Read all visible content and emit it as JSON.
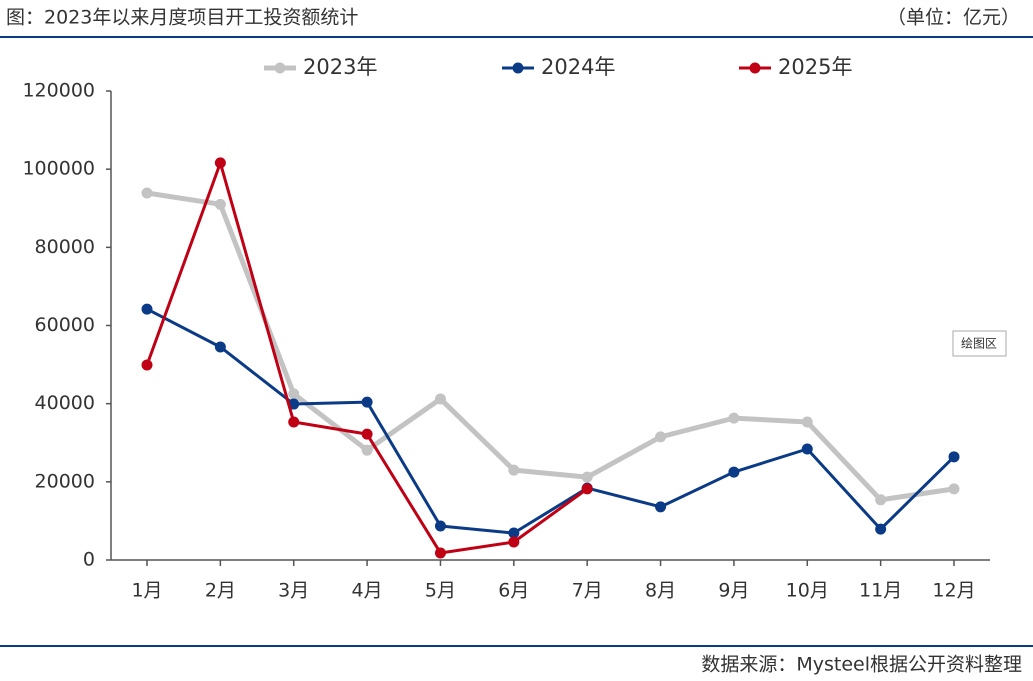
{
  "chart_data": {
    "type": "line",
    "title": "图：2023年以来月度项目开工投资额统计",
    "unit": "（单位：亿元）",
    "source": "数据来源：Mysteel根据公开资料整理",
    "annotation": "绘图区",
    "categories": [
      "1月",
      "2月",
      "3月",
      "4月",
      "5月",
      "6月",
      "7月",
      "8月",
      "9月",
      "10月",
      "11月",
      "12月"
    ],
    "series": [
      {
        "name": "2023年",
        "color": "#c3c3c3",
        "values": [
          93900,
          91000,
          42500,
          28100,
          41200,
          23000,
          21200,
          31500,
          36300,
          35300,
          15400,
          18200
        ]
      },
      {
        "name": "2024年",
        "color": "#0b3a86",
        "values": [
          64200,
          54500,
          39900,
          40400,
          8700,
          6900,
          18400,
          13600,
          22500,
          28400,
          7900,
          26400
        ]
      },
      {
        "name": "2025年",
        "color": "#c00014",
        "values": [
          49900,
          101600,
          35300,
          32200,
          1800,
          4600,
          18200,
          null,
          null,
          null,
          null,
          null
        ]
      }
    ],
    "ylim": [
      0,
      120000
    ],
    "yticks": [
      0,
      20000,
      40000,
      60000,
      80000,
      100000,
      120000
    ],
    "grid": false,
    "legend": "top"
  }
}
